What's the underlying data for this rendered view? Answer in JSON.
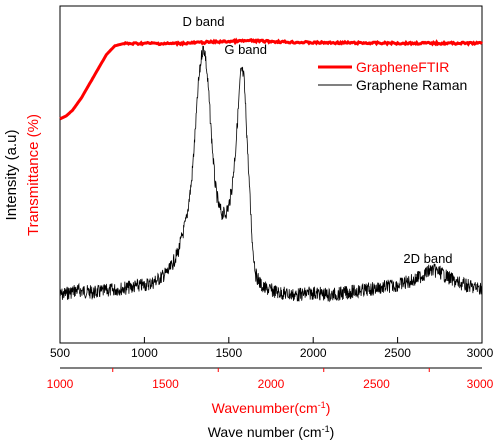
{
  "chart_data": [
    {
      "type": "line",
      "name_text": "Graphene Raman",
      "xlabel": "Wave number",
      "xlabel_unit_base": "(cm",
      "xlabel_unit_sup": "-1",
      "xlabel_unit_close": ")",
      "ylabel": "Intensity (a.u)",
      "xlim": [
        500,
        3000
      ],
      "xticks": [
        500,
        1000,
        1500,
        2000,
        2500,
        3000
      ],
      "ylim": [
        0,
        1
      ],
      "axis": "bottom",
      "color": "#000000",
      "annotations": [
        {
          "text": "D band",
          "x": 1350
        },
        {
          "text": "G band",
          "x": 1580
        },
        {
          "text": "2D band",
          "x": 2700
        }
      ],
      "series": [
        {
          "name": "Graphene Raman",
          "x": [
            500,
            600,
            700,
            800,
            900,
            1000,
            1050,
            1100,
            1150,
            1200,
            1250,
            1280,
            1300,
            1320,
            1340,
            1350,
            1360,
            1380,
            1400,
            1420,
            1440,
            1460,
            1480,
            1500,
            1520,
            1540,
            1560,
            1570,
            1580,
            1590,
            1600,
            1620,
            1640,
            1660,
            1700,
            1800,
            1900,
            2000,
            2100,
            2200,
            2300,
            2400,
            2500,
            2550,
            2600,
            2650,
            2700,
            2750,
            2800,
            2850,
            2900,
            2950,
            3000
          ],
          "y": [
            0.05,
            0.07,
            0.06,
            0.07,
            0.08,
            0.09,
            0.1,
            0.12,
            0.15,
            0.22,
            0.35,
            0.5,
            0.68,
            0.88,
            1.0,
            1.02,
            1.0,
            0.85,
            0.65,
            0.48,
            0.4,
            0.37,
            0.37,
            0.4,
            0.48,
            0.62,
            0.82,
            0.92,
            0.93,
            0.9,
            0.78,
            0.5,
            0.25,
            0.13,
            0.08,
            0.06,
            0.05,
            0.06,
            0.05,
            0.06,
            0.07,
            0.08,
            0.09,
            0.1,
            0.11,
            0.13,
            0.15,
            0.14,
            0.12,
            0.1,
            0.09,
            0.08,
            0.08
          ]
        }
      ]
    },
    {
      "type": "line",
      "xlabel": "Wavenumber(cm",
      "xlabel_sup": "-1",
      "xlabel_close": ")",
      "ylabel": "Transmittance (%)",
      "xlim": [
        1000,
        3000
      ],
      "xticks": [
        1000,
        1500,
        2000,
        2500,
        3000
      ],
      "ylim": [
        0,
        1
      ],
      "axis": "bottom-secondary",
      "color": "#ff0000",
      "series": [
        {
          "name": "GrapheneFTIR",
          "x": [
            1000,
            1030,
            1060,
            1100,
            1140,
            1180,
            1220,
            1260,
            1300,
            1350,
            1400,
            1500,
            1600,
            1700,
            1800,
            1900,
            2000,
            2100,
            2200,
            2400,
            2600,
            2800,
            3000
          ],
          "y": [
            0.46,
            0.48,
            0.52,
            0.6,
            0.7,
            0.8,
            0.9,
            0.96,
            0.975,
            0.975,
            0.978,
            0.975,
            0.978,
            0.985,
            0.99,
            0.995,
            0.99,
            0.985,
            0.982,
            0.98,
            0.978,
            0.978,
            0.978
          ]
        }
      ]
    }
  ],
  "legend": [
    {
      "label": "GrapheneFTIR",
      "color": "#ff0000"
    },
    {
      "label": "Graphene Raman",
      "color": "#000000"
    }
  ]
}
